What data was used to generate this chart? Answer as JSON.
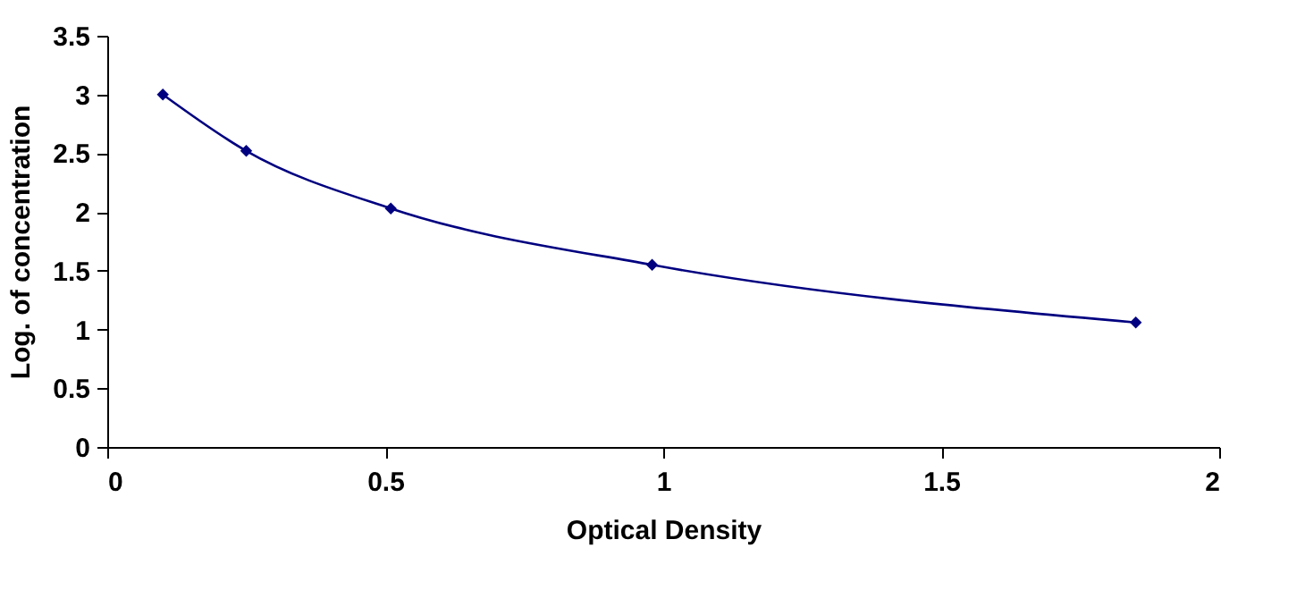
{
  "chart_data": {
    "type": "line",
    "xlabel": "Optical Density",
    "ylabel": "Log. of concentration",
    "x": [
      0.1,
      0.25,
      0.51,
      0.98,
      1.85
    ],
    "series": [
      {
        "color": "#000080",
        "values": [
          3.0,
          2.52,
          2.03,
          1.55,
          1.06
        ]
      }
    ],
    "xlim": [
      0,
      2
    ],
    "xticks": [
      0,
      0.5,
      1,
      1.5,
      2
    ],
    "ylim": [
      0,
      3.5
    ],
    "yticks": [
      0,
      0.5,
      1,
      1.5,
      2,
      2.5,
      3,
      3.5
    ],
    "marker": "diamond",
    "line_style": "solid",
    "grid": false
  }
}
